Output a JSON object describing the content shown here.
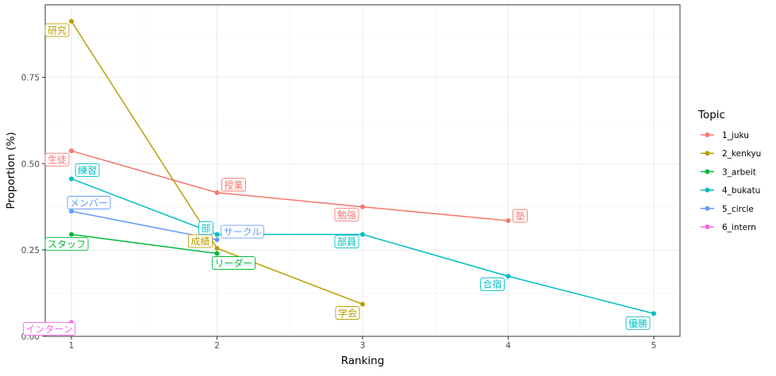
{
  "chart_data": {
    "type": "line",
    "xlabel": "Ranking",
    "ylabel": "Proportion (%)",
    "xlim": [
      0.82,
      5.18
    ],
    "ylim": [
      0.0,
      0.96
    ],
    "x_ticks": [
      1,
      2,
      3,
      4,
      5
    ],
    "y_ticks": [
      0.0,
      0.25,
      0.5,
      0.75
    ],
    "y_tick_labels": [
      "0.00",
      "0.25",
      "0.50",
      "0.75"
    ],
    "grid": true,
    "legend_title": "Topic",
    "legend_position": "right",
    "series": [
      {
        "name": "1_juku",
        "color": "#F8766D",
        "points": [
          {
            "x": 1,
            "y": 0.537,
            "label": "生徒"
          },
          {
            "x": 2,
            "y": 0.416,
            "label": "授業"
          },
          {
            "x": 3,
            "y": 0.375,
            "label": "勉強"
          },
          {
            "x": 4,
            "y": 0.335,
            "label": "塾"
          }
        ]
      },
      {
        "name": "2_kenkyu",
        "color": "#B79F00",
        "points": [
          {
            "x": 1,
            "y": 0.912,
            "label": "研究"
          },
          {
            "x": 2,
            "y": 0.255,
            "label": "成績"
          },
          {
            "x": 3,
            "y": 0.093,
            "label": "学会"
          }
        ]
      },
      {
        "name": "3_arbeit",
        "color": "#00BA38",
        "points": [
          {
            "x": 1,
            "y": 0.295,
            "label": "スタッフ"
          },
          {
            "x": 2,
            "y": 0.24,
            "label": "リーダー"
          }
        ]
      },
      {
        "name": "4_bukatu",
        "color": "#00BFC4",
        "points": [
          {
            "x": 1,
            "y": 0.456,
            "label": "練習"
          },
          {
            "x": 2,
            "y": 0.295,
            "label": "部"
          },
          {
            "x": 3,
            "y": 0.295,
            "label": "部員"
          },
          {
            "x": 4,
            "y": 0.174,
            "label": "合宿"
          },
          {
            "x": 5,
            "y": 0.066,
            "label": "優勝"
          }
        ]
      },
      {
        "name": "5_circle",
        "color": "#619CFF",
        "points": [
          {
            "x": 1,
            "y": 0.362,
            "label": "メンバー"
          },
          {
            "x": 2,
            "y": 0.28,
            "label": "サークル"
          }
        ]
      },
      {
        "name": "6_intern",
        "color": "#F564E3",
        "points": [
          {
            "x": 1,
            "y": 0.04,
            "label": "インターン"
          }
        ]
      }
    ]
  }
}
